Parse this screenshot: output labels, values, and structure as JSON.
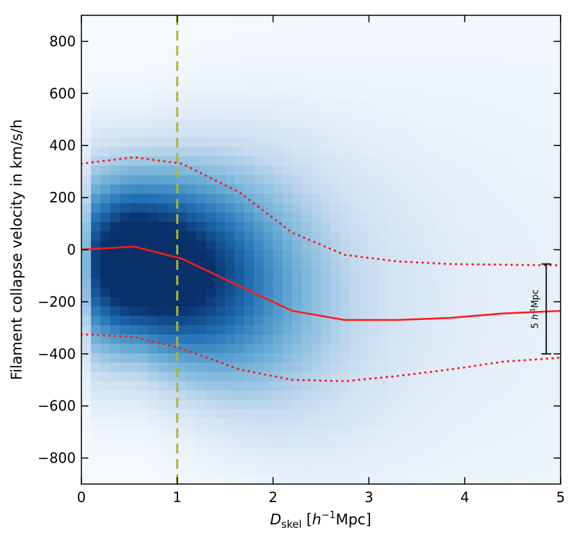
{
  "chart_data": {
    "type": "heatmap",
    "title": "",
    "xlabel_parts": {
      "symbol": "D",
      "subscript": "skel",
      "unit_open": " [",
      "unit_h": "h",
      "unit_exp": "−1",
      "unit_rest": "Mpc]"
    },
    "ylabel": "Filament collapse velocity in km/s/h",
    "xlim": [
      0,
      5
    ],
    "ylim": [
      -900,
      900
    ],
    "xticks": [
      0,
      1,
      2,
      3,
      4,
      5
    ],
    "xtick_labels": [
      "0",
      "1",
      "2",
      "3",
      "4",
      "5"
    ],
    "yticks": [
      -800,
      -600,
      -400,
      -200,
      0,
      200,
      400,
      600,
      800
    ],
    "ytick_labels": [
      "−800",
      "−600",
      "−400",
      "−200",
      "0",
      "200",
      "400",
      "600",
      "800"
    ],
    "heatmap": {
      "colormap": "Blues",
      "x_bins": 50,
      "y_bins": 50,
      "peak_x": 0.6,
      "peak_y": -50,
      "description_values": "density peaks near D=0.6, v=-50 and decays with distance"
    },
    "series": [
      {
        "name": "median",
        "style": "solid",
        "color": "#ff1a1a",
        "x": [
          0,
          0.55,
          1.05,
          1.65,
          2.2,
          2.75,
          3.3,
          3.85,
          4.4,
          5.0
        ],
        "y": [
          0,
          12,
          -35,
          -140,
          -235,
          -270,
          -270,
          -262,
          -245,
          -235
        ]
      },
      {
        "name": "upper percentile",
        "style": "dotted",
        "color": "#ff1a1a",
        "x": [
          0,
          0.55,
          1.05,
          1.65,
          2.2,
          2.75,
          3.3,
          3.85,
          4.4,
          5.0
        ],
        "y": [
          330,
          355,
          330,
          220,
          65,
          -20,
          -45,
          -55,
          -58,
          -60
        ]
      },
      {
        "name": "lower percentile",
        "style": "dotted",
        "color": "#ff1a1a",
        "x": [
          0,
          0.55,
          1.05,
          1.65,
          2.2,
          2.75,
          3.3,
          3.85,
          4.4,
          5.0
        ],
        "y": [
          -325,
          -335,
          -380,
          -460,
          -500,
          -505,
          -485,
          -460,
          -430,
          -415
        ]
      }
    ],
    "vline": {
      "x": 1,
      "color": "#b5b52a",
      "style": "dashed"
    },
    "scale_bar": {
      "x": 4.85,
      "y_top": -55,
      "y_bottom": -400,
      "label_number": "5",
      "label_h": "h",
      "label_exp": "-1",
      "label_unit": "Mpc"
    }
  }
}
